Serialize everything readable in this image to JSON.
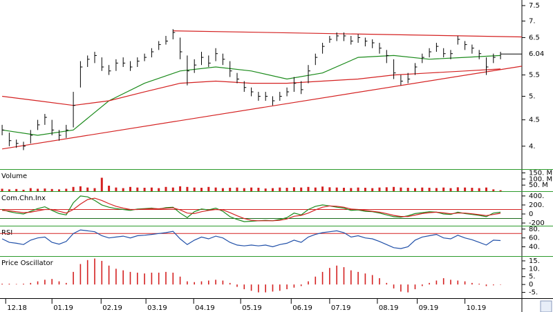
{
  "chart_data": [
    {
      "type": "ohlc",
      "log_scale": true,
      "ylim": [
        3.61,
        7.69
      ],
      "xlim": [
        -0.3,
        73
      ],
      "color": "#000000",
      "yticks": [
        7.5,
        {
          "value": 7,
          "label": "7."
        },
        6.5,
        5.5,
        {
          "value": 5,
          "label": "5."
        },
        4.5,
        {
          "value": 4,
          "label": "4."
        }
      ],
      "xticks": [
        {
          "value": 0.5,
          "label": "12.18"
        },
        {
          "value": 7,
          "label": "01.19"
        },
        {
          "value": 13.9,
          "label": "02.19"
        },
        {
          "value": 20.2,
          "label": "03.19"
        },
        {
          "value": 26.9,
          "label": "04.19"
        },
        {
          "value": 33.5,
          "label": "05.19"
        },
        {
          "value": 40.6,
          "label": "06.19"
        },
        {
          "value": 46,
          "label": "07.19"
        },
        {
          "value": 52.7,
          "label": "08.19"
        },
        {
          "value": 58.3,
          "label": "09.19"
        },
        {
          "value": 65,
          "label": "10.19"
        }
      ],
      "values": [
        4.3,
        4.1,
        4.05,
        4.0,
        4.2,
        4.4,
        4.55,
        4.3,
        4.2,
        4.3,
        4.8,
        5.7,
        5.9,
        6.0,
        5.7,
        5.6,
        5.8,
        5.8,
        5.7,
        5.85,
        5.95,
        6.1,
        6.3,
        6.4,
        6.65,
        6.1,
        5.6,
        5.75,
        5.95,
        5.8,
        6.05,
        5.9,
        5.6,
        5.4,
        5.2,
        5.1,
        5.0,
        5.0,
        4.9,
        5.0,
        5.1,
        5.3,
        5.15,
        5.6,
        5.95,
        6.25,
        6.45,
        6.55,
        6.55,
        6.4,
        6.5,
        6.4,
        6.35,
        6.2,
        6.0,
        5.55,
        5.35,
        5.4,
        5.7,
        5.95,
        6.1,
        6.25,
        6.05,
        6.05,
        6.45,
        6.3,
        6.2,
        6.05,
        5.7,
        5.95,
        6.04
      ],
      "highs": [
        4.4,
        4.25,
        4.12,
        4.08,
        4.3,
        4.5,
        4.62,
        4.5,
        4.3,
        4.4,
        5.1,
        5.85,
        6.0,
        6.1,
        5.95,
        5.75,
        5.9,
        5.95,
        5.85,
        5.95,
        6.05,
        6.2,
        6.4,
        6.55,
        6.75,
        6.5,
        6.0,
        5.9,
        6.1,
        6.0,
        6.2,
        6.05,
        5.85,
        5.55,
        5.35,
        5.2,
        5.1,
        5.1,
        5.0,
        5.1,
        5.2,
        5.45,
        5.35,
        5.75,
        6.05,
        6.35,
        6.55,
        6.65,
        6.65,
        6.55,
        6.6,
        6.5,
        6.45,
        6.35,
        6.15,
        5.9,
        5.5,
        5.55,
        5.8,
        6.05,
        6.2,
        6.35,
        6.2,
        6.15,
        6.55,
        6.4,
        6.3,
        6.15,
        5.95,
        6.05,
        6.1
      ],
      "lows": [
        4.2,
        4.0,
        3.97,
        3.93,
        4.05,
        4.3,
        4.4,
        4.2,
        4.1,
        4.15,
        4.35,
        5.2,
        5.7,
        5.8,
        5.6,
        5.5,
        5.6,
        5.7,
        5.6,
        5.7,
        5.85,
        5.95,
        6.15,
        6.3,
        6.45,
        5.9,
        5.25,
        5.55,
        5.75,
        5.7,
        5.85,
        5.75,
        5.45,
        5.3,
        5.1,
        5.0,
        4.9,
        4.9,
        4.8,
        4.9,
        5.0,
        5.1,
        5.05,
        5.3,
        5.75,
        6.05,
        6.35,
        6.4,
        6.4,
        6.3,
        6.35,
        6.25,
        6.2,
        6.05,
        5.8,
        5.4,
        5.25,
        5.3,
        5.5,
        5.8,
        5.95,
        6.1,
        5.95,
        5.9,
        6.3,
        6.15,
        6.05,
        5.9,
        5.5,
        5.8,
        5.9
      ],
      "series": [
        {
          "color": "#1a8a1a",
          "x": [
            0,
            5,
            10,
            15,
            20,
            25,
            30,
            35,
            40,
            45,
            50,
            55,
            60,
            65,
            70
          ],
          "values": [
            4.3,
            4.2,
            4.3,
            4.9,
            5.3,
            5.6,
            5.7,
            5.6,
            5.4,
            5.55,
            5.95,
            6.0,
            5.9,
            5.95,
            6.0
          ]
        },
        {
          "color": "#d42020",
          "x": [
            0,
            5,
            10,
            15,
            20,
            25,
            30,
            35,
            40,
            45,
            50,
            55,
            60,
            65,
            70
          ],
          "values": [
            5.0,
            4.9,
            4.8,
            4.9,
            5.1,
            5.3,
            5.35,
            5.3,
            5.3,
            5.35,
            5.4,
            5.5,
            5.55,
            5.6,
            5.65
          ]
        }
      ],
      "trendlines": [
        {
          "color": "#d42020",
          "x": [
            24,
            73
          ],
          "y": [
            6.7,
            6.52
          ]
        },
        {
          "color": "#d42020",
          "x": [
            0,
            73
          ],
          "y": [
            3.95,
            5.72
          ]
        }
      ]
    },
    {
      "type": "bar",
      "title": "Volume",
      "color": "#d42020",
      "ylim": [
        0,
        175
      ],
      "yticks": [
        {
          "value": 150,
          "label": "150. M"
        },
        {
          "value": 100,
          "label": "100. M"
        },
        {
          "value": 50,
          "label": "50. M"
        }
      ],
      "values": [
        20,
        15,
        18,
        12,
        25,
        20,
        22,
        18,
        15,
        20,
        35,
        40,
        30,
        25,
        110,
        45,
        30,
        25,
        35,
        30,
        28,
        30,
        25,
        35,
        30,
        40,
        35,
        30,
        28,
        35,
        30,
        25,
        28,
        30,
        25,
        30,
        28,
        22,
        25,
        30,
        28,
        32,
        30,
        35,
        30,
        38,
        32,
        30,
        28,
        26,
        30,
        28,
        25,
        30,
        32,
        35,
        30,
        28,
        25,
        30,
        28,
        26,
        30,
        25,
        32,
        30,
        28,
        25,
        30,
        15,
        8
      ]
    },
    {
      "type": "line",
      "title": "Com.Chn.Inx",
      "ylim": [
        -260,
        490
      ],
      "yticks": [
        {
          "value": 400,
          "label": "400."
        },
        {
          "value": 200,
          "label": "200."
        },
        0,
        -200
      ],
      "levels": [
        100,
        -100
      ],
      "level_colors": [
        "#d42020",
        "#1a6a1a"
      ],
      "series": [
        {
          "color": "#1a8a1a",
          "values": [
            100,
            50,
            20,
            0,
            60,
            120,
            160,
            80,
            10,
            -20,
            250,
            400,
            380,
            300,
            200,
            150,
            120,
            100,
            80,
            110,
            120,
            130,
            110,
            140,
            150,
            20,
            -80,
            50,
            110,
            90,
            130,
            60,
            -60,
            -120,
            -170,
            -160,
            -150,
            -140,
            -150,
            -120,
            -80,
            20,
            -20,
            100,
            170,
            200,
            180,
            150,
            130,
            80,
            90,
            60,
            50,
            20,
            -20,
            -60,
            -70,
            -40,
            10,
            30,
            50,
            40,
            0,
            -10,
            40,
            10,
            -10,
            -30,
            -60,
            20,
            40
          ]
        },
        {
          "color": "#d42020",
          "values": [
            80,
            70,
            50,
            30,
            40,
            70,
            100,
            100,
            60,
            20,
            100,
            220,
            320,
            350,
            300,
            230,
            170,
            130,
            100,
            100,
            110,
            120,
            115,
            125,
            135,
            90,
            20,
            10,
            50,
            80,
            100,
            90,
            30,
            -40,
            -100,
            -140,
            -150,
            -150,
            -150,
            -140,
            -110,
            -50,
            -30,
            20,
            90,
            150,
            180,
            170,
            150,
            110,
            100,
            80,
            60,
            40,
            10,
            -30,
            -55,
            -55,
            -25,
            10,
            30,
            40,
            25,
            5,
            20,
            20,
            5,
            -15,
            -35,
            -10,
            15
          ]
        }
      ]
    },
    {
      "type": "line",
      "title": "RSI",
      "ylim": [
        19,
        86
      ],
      "yticks": [
        {
          "value": 80,
          "label": "80."
        },
        {
          "value": 60,
          "label": "60."
        },
        {
          "value": 40,
          "label": "40."
        }
      ],
      "levels": [
        70
      ],
      "level_colors": [
        "#d42020"
      ],
      "series": [
        {
          "color": "#1f4fa8",
          "values": [
            58,
            50,
            48,
            45,
            55,
            60,
            62,
            50,
            46,
            52,
            70,
            78,
            76,
            74,
            65,
            60,
            62,
            64,
            60,
            65,
            66,
            68,
            70,
            72,
            75,
            58,
            45,
            55,
            62,
            58,
            64,
            60,
            50,
            44,
            42,
            44,
            42,
            44,
            40,
            45,
            48,
            55,
            50,
            62,
            68,
            72,
            74,
            76,
            72,
            62,
            65,
            60,
            58,
            52,
            45,
            38,
            36,
            40,
            55,
            62,
            65,
            68,
            60,
            58,
            66,
            60,
            56,
            50,
            44,
            55,
            54
          ]
        }
      ]
    },
    {
      "type": "bar",
      "title": "Price Oscillator",
      "color": "#d42020",
      "ylim": [
        -8.7,
        17.6
      ],
      "yticks": [
        {
          "value": 15,
          "label": "15."
        },
        {
          "value": 10,
          "label": "10."
        },
        {
          "value": 5,
          "label": "5."
        },
        0,
        {
          "value": -5,
          "label": "-5."
        }
      ],
      "values": [
        0.5,
        0.5,
        0.3,
        0.5,
        1,
        2,
        3,
        3.5,
        2,
        1,
        8,
        13,
        15.5,
        16.5,
        15,
        12,
        10,
        9,
        8,
        7.5,
        7,
        7.5,
        7.5,
        8,
        7.5,
        5,
        2,
        1.5,
        2,
        2.5,
        3,
        2.5,
        1,
        -1.5,
        -3,
        -4,
        -5,
        -5,
        -4.5,
        -4,
        -3,
        -2,
        -1,
        2,
        5,
        8,
        10.5,
        12,
        11,
        9,
        8,
        7,
        6,
        4,
        1,
        -2.5,
        -4.5,
        -5,
        -3,
        -1,
        1,
        2.5,
        4,
        3,
        2.5,
        2,
        1,
        0.5,
        -1,
        -0.5,
        -0.2
      ]
    }
  ]
}
